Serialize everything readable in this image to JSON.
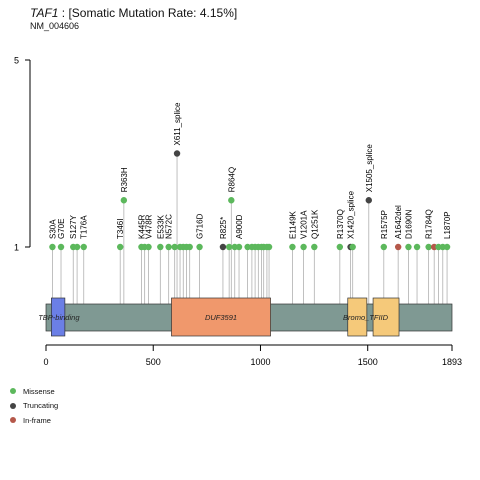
{
  "header": {
    "gene": "TAF1",
    "title_rest": " : [Somatic Mutation Rate: 4.15%]",
    "transcript": "NM_004606"
  },
  "colors": {
    "missense": "#5cb85c",
    "truncating": "#444444",
    "inframe": "#b5584a",
    "backbone": "#7f9993",
    "stem": "#b0b0b0"
  },
  "chart_data": {
    "type": "lollipop",
    "protein_length": 1893,
    "x_ticks": [
      0,
      500,
      1000,
      1500,
      1893
    ],
    "y_ticks": [
      1,
      5
    ],
    "y_range": [
      1,
      5
    ],
    "domains": [
      {
        "name": "TBP-binding",
        "start": 25,
        "end": 88,
        "color": "#6b7fe6",
        "label_pos": 60
      },
      {
        "name": "DUF3591",
        "start": 585,
        "end": 1047,
        "color": "#f0986c",
        "label_pos": 816
      },
      {
        "name": "Bromo_TFIID",
        "start": 1407,
        "end": 1496,
        "color": "#f5c97a",
        "label_pos": 1490
      },
      {
        "name": "",
        "start": 1525,
        "end": 1646,
        "color": "#f5c97a",
        "label_pos": 1585
      }
    ],
    "mutations": [
      {
        "pos": 30,
        "count": 1,
        "type": "missense",
        "label": "S30A"
      },
      {
        "pos": 70,
        "count": 1,
        "type": "missense",
        "label": "G70E"
      },
      {
        "pos": 127,
        "count": 1,
        "type": "missense",
        "label": "S127Y"
      },
      {
        "pos": 145,
        "count": 1,
        "type": "missense",
        "label": ""
      },
      {
        "pos": 176,
        "count": 1,
        "type": "missense",
        "label": "T176A"
      },
      {
        "pos": 346,
        "count": 1,
        "type": "missense",
        "label": "T346I"
      },
      {
        "pos": 363,
        "count": 2,
        "type": "missense",
        "label": "R363H"
      },
      {
        "pos": 445,
        "count": 1,
        "type": "missense",
        "label": "K445R"
      },
      {
        "pos": 460,
        "count": 1,
        "type": "missense",
        "label": ""
      },
      {
        "pos": 478,
        "count": 1,
        "type": "missense",
        "label": "V478R"
      },
      {
        "pos": 533,
        "count": 1,
        "type": "missense",
        "label": "E533K"
      },
      {
        "pos": 572,
        "count": 1,
        "type": "missense",
        "label": "N572C"
      },
      {
        "pos": 600,
        "count": 1,
        "type": "missense",
        "label": ""
      },
      {
        "pos": 611,
        "count": 3,
        "type": "truncating",
        "label": "X611_splice"
      },
      {
        "pos": 625,
        "count": 1,
        "type": "missense",
        "label": ""
      },
      {
        "pos": 640,
        "count": 1,
        "type": "missense",
        "label": ""
      },
      {
        "pos": 655,
        "count": 1,
        "type": "missense",
        "label": ""
      },
      {
        "pos": 670,
        "count": 1,
        "type": "missense",
        "label": ""
      },
      {
        "pos": 716,
        "count": 1,
        "type": "missense",
        "label": "G716D"
      },
      {
        "pos": 825,
        "count": 1,
        "type": "truncating",
        "label": "R825*"
      },
      {
        "pos": 854,
        "count": 1,
        "type": "missense",
        "label": ""
      },
      {
        "pos": 864,
        "count": 2,
        "type": "missense",
        "label": "R864Q"
      },
      {
        "pos": 880,
        "count": 1,
        "type": "missense",
        "label": ""
      },
      {
        "pos": 900,
        "count": 1,
        "type": "missense",
        "label": "A900D"
      },
      {
        "pos": 940,
        "count": 1,
        "type": "missense",
        "label": ""
      },
      {
        "pos": 960,
        "count": 1,
        "type": "missense",
        "label": ""
      },
      {
        "pos": 975,
        "count": 1,
        "type": "missense",
        "label": ""
      },
      {
        "pos": 990,
        "count": 1,
        "type": "missense",
        "label": ""
      },
      {
        "pos": 1005,
        "count": 1,
        "type": "missense",
        "label": ""
      },
      {
        "pos": 1015,
        "count": 1,
        "type": "missense",
        "label": ""
      },
      {
        "pos": 1030,
        "count": 1,
        "type": "missense",
        "label": ""
      },
      {
        "pos": 1040,
        "count": 1,
        "type": "missense",
        "label": ""
      },
      {
        "pos": 1149,
        "count": 1,
        "type": "missense",
        "label": "E1149K"
      },
      {
        "pos": 1201,
        "count": 1,
        "type": "missense",
        "label": "V1201A"
      },
      {
        "pos": 1251,
        "count": 1,
        "type": "missense",
        "label": "Q1251K"
      },
      {
        "pos": 1370,
        "count": 1,
        "type": "missense",
        "label": "R1370Q"
      },
      {
        "pos": 1420,
        "count": 1,
        "type": "truncating",
        "label": "X1420_splice"
      },
      {
        "pos": 1430,
        "count": 1,
        "type": "missense",
        "label": ""
      },
      {
        "pos": 1505,
        "count": 2,
        "type": "truncating",
        "label": "X1505_splice"
      },
      {
        "pos": 1575,
        "count": 1,
        "type": "missense",
        "label": "R1575P"
      },
      {
        "pos": 1642,
        "count": 1,
        "type": "inframe",
        "label": "A1642del"
      },
      {
        "pos": 1690,
        "count": 1,
        "type": "missense",
        "label": "D1690N"
      },
      {
        "pos": 1730,
        "count": 1,
        "type": "missense",
        "label": ""
      },
      {
        "pos": 1784,
        "count": 1,
        "type": "missense",
        "label": "R1784Q"
      },
      {
        "pos": 1810,
        "count": 1,
        "type": "inframe",
        "label": ""
      },
      {
        "pos": 1830,
        "count": 1,
        "type": "missense",
        "label": ""
      },
      {
        "pos": 1850,
        "count": 1,
        "type": "missense",
        "label": ""
      },
      {
        "pos": 1870,
        "count": 1,
        "type": "missense",
        "label": "L1870P"
      }
    ]
  },
  "legend": [
    {
      "label": "Missense",
      "type": "missense"
    },
    {
      "label": "Truncating",
      "type": "truncating"
    },
    {
      "label": "In-frame",
      "type": "inframe"
    }
  ]
}
